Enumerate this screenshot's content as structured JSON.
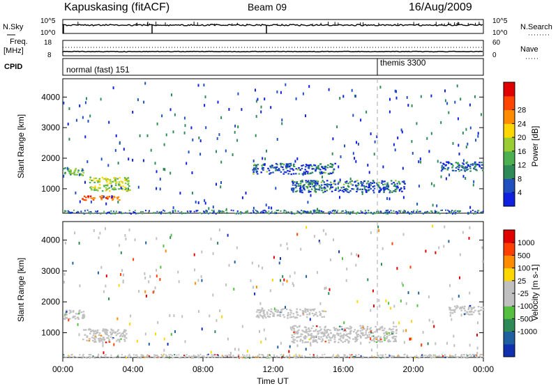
{
  "header": {
    "title": "Kapuskasing (fitACF)",
    "beam": "Beam 09",
    "date": "16/Aug/2009"
  },
  "summary_panels": {
    "nsky_label": "N.Sky",
    "nsky_ticks": [
      "10^5",
      "10^0"
    ],
    "nsearch_label": "N.Search",
    "nsearch_ticks": [
      "10^5",
      "10^0"
    ],
    "freq_label": "Freq.",
    "freq_unit": "[MHz]",
    "freq_ticks": [
      "18",
      "8"
    ],
    "nave_label": "Nave",
    "nave_ticks": [
      "60",
      "0"
    ],
    "cpid_label": "CPID",
    "cpid_modes": [
      "normal (fast) 151",
      "themis 3300"
    ]
  },
  "chart_data": [
    {
      "type": "heatmap",
      "name": "power",
      "ylabel": "Slant Range [km]",
      "yticks": [
        "1000",
        "2000",
        "3000",
        "4000"
      ],
      "ylim": [
        200,
        4600
      ],
      "xlim_hours": [
        0,
        24
      ],
      "colorbar_label": "Power [dB]",
      "colorbar_ticks": [
        "4",
        "8",
        "12",
        "16",
        "20",
        "24",
        "28"
      ],
      "colorbar_colors": [
        "#1020e0",
        "#2050c0",
        "#2e8b57",
        "#4caf50",
        "#9acd32",
        "#ffd700",
        "#ff8c00",
        "#ff4500",
        "#e00000"
      ],
      "echo_regions": [
        {
          "t0": 0.0,
          "t1": 1.2,
          "r0": 1450,
          "r1": 1700,
          "level": "mid"
        },
        {
          "t0": 1.5,
          "t1": 3.8,
          "r0": 950,
          "r1": 1400,
          "level": "high"
        },
        {
          "t0": 0.8,
          "t1": 3.2,
          "r0": 650,
          "r1": 800,
          "level": "very-high"
        },
        {
          "t0": 10.8,
          "t1": 15.5,
          "r0": 1500,
          "r1": 1850,
          "level": "low"
        },
        {
          "t0": 13.0,
          "t1": 19.5,
          "r0": 900,
          "r1": 1300,
          "level": "low"
        },
        {
          "t0": 21.5,
          "t1": 24.0,
          "r0": 1600,
          "r1": 1900,
          "level": "low"
        }
      ]
    },
    {
      "type": "heatmap",
      "name": "velocity",
      "ylabel": "Slant Range [km]",
      "yticks": [
        "1000",
        "2000",
        "3000",
        "4000"
      ],
      "ylim": [
        200,
        4600
      ],
      "xlim_hours": [
        0,
        24
      ],
      "colorbar_label": "Velocity [m s-1]",
      "colorbar_ticks": [
        "1000",
        "500",
        "100",
        "25",
        "-25",
        "-100",
        "-500",
        "-1000"
      ],
      "colorbar_colors": [
        "#1030b0",
        "#2060a0",
        "#2e8b57",
        "#55c040",
        "#c0c0c0",
        "#c0c0c0",
        "#ffd700",
        "#ff8c00",
        "#ff4000",
        "#e00000"
      ],
      "ground_scatter_regions": [
        {
          "t0": 0.0,
          "t1": 1.3,
          "r0": 1450,
          "r1": 1750
        },
        {
          "t0": 1.0,
          "t1": 3.6,
          "r0": 700,
          "r1": 1150
        },
        {
          "t0": 11.0,
          "t1": 15.0,
          "r0": 1500,
          "r1": 1800
        },
        {
          "t0": 13.0,
          "t1": 19.0,
          "r0": 700,
          "r1": 1250
        },
        {
          "t0": 22.0,
          "t1": 24.0,
          "r0": 1600,
          "r1": 1900
        }
      ]
    }
  ],
  "xaxis": {
    "ticks": [
      "00:00",
      "04:00",
      "08:00",
      "12:00",
      "16:00",
      "20:00",
      "00:00"
    ],
    "label": "Time UT"
  }
}
